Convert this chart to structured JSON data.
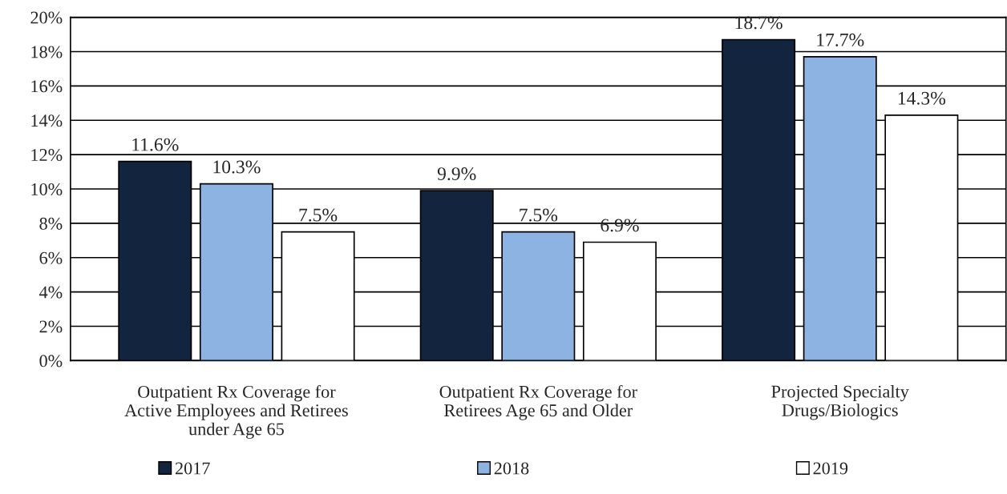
{
  "chart_data": {
    "type": "bar",
    "categories": [
      "Outpatient Rx Coverage for\nActive Employees and Retirees\nunder Age 65",
      "Outpatient Rx Coverage for\nRetirees Age 65 and Older",
      "Projected Specialty\nDrugs/Biologics"
    ],
    "series": [
      {
        "name": "2017",
        "color": "#13243f",
        "values": [
          11.6,
          9.9,
          18.7
        ],
        "value_labels": [
          "11.6%",
          "9.9%",
          "18.7%"
        ]
      },
      {
        "name": "2018",
        "color": "#8db3e2",
        "values": [
          10.3,
          7.5,
          17.7
        ],
        "value_labels": [
          "10.3%",
          "7.5%",
          "17.7%"
        ]
      },
      {
        "name": "2019",
        "color": "#ffffff",
        "values": [
          7.5,
          6.9,
          14.3
        ],
        "value_labels": [
          "7.5%",
          "6.9%",
          "14.3%"
        ]
      }
    ],
    "ylim": [
      0,
      20
    ],
    "yticks": [
      {
        "value": 0,
        "label": "0%"
      },
      {
        "value": 2,
        "label": "2%"
      },
      {
        "value": 4,
        "label": "4%"
      },
      {
        "value": 6,
        "label": "6%"
      },
      {
        "value": 8,
        "label": "8%"
      },
      {
        "value": 10,
        "label": "10%"
      },
      {
        "value": 12,
        "label": "12%"
      },
      {
        "value": 14,
        "label": "14%"
      },
      {
        "value": 16,
        "label": "16%"
      },
      {
        "value": 18,
        "label": "18%"
      },
      {
        "value": 20,
        "label": "20%"
      }
    ],
    "grid": "y",
    "legend": "bottom"
  }
}
